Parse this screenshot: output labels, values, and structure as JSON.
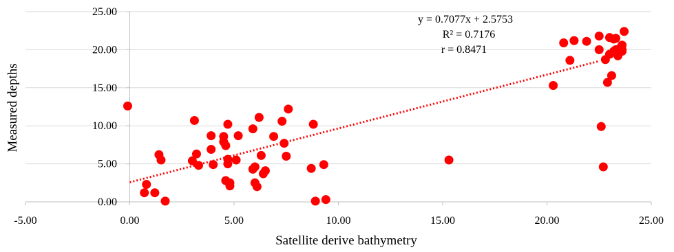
{
  "chart_data": {
    "type": "scatter",
    "title": "",
    "xlabel": "Satellite derive bathymetry",
    "ylabel": "Measured depths",
    "xlim": [
      -5,
      25
    ],
    "ylim": [
      0,
      25
    ],
    "x_ticks": [
      "-5.00",
      "0.00",
      "5.00",
      "10.00",
      "15.00",
      "20.00",
      "25.00"
    ],
    "y_ticks": [
      "0.00",
      "5.00",
      "10.00",
      "15.00",
      "20.00",
      "25.00"
    ],
    "grid": "horizontal",
    "legend": "none",
    "point_color": "#ff0000",
    "trendline": {
      "type": "linear",
      "slope": 0.7077,
      "intercept": 2.5753,
      "style": "dotted",
      "color": "#ff0000",
      "x_range": [
        0,
        22.5
      ]
    },
    "annotations": [
      "y = 0.7077x + 2.5753",
      "R² = 0.7176",
      "r = 0.8471"
    ],
    "series": [
      {
        "x": [
          -0.1,
          0.7,
          0.8,
          1.2,
          1.4,
          1.5,
          1.7,
          3.0,
          3.1,
          3.2,
          3.3,
          3.9,
          3.9,
          4.0,
          4.5,
          4.5,
          4.6,
          4.6,
          4.7,
          4.7,
          4.7,
          4.8,
          4.8,
          5.1,
          5.2,
          5.9,
          5.9,
          6.0,
          6.0,
          6.1,
          6.2,
          6.3,
          6.4,
          6.5,
          6.9,
          7.3,
          7.4,
          7.5,
          7.6,
          8.7,
          8.8,
          8.9,
          9.3,
          9.4,
          15.3,
          20.3,
          20.8,
          21.1,
          21.3,
          21.9,
          22.5,
          22.5,
          22.6,
          22.7,
          22.8,
          22.9,
          23.0,
          23.0,
          23.1,
          23.2,
          23.2,
          23.3,
          23.3,
          23.4,
          23.5,
          23.6,
          23.6,
          23.6,
          23.7
        ],
        "y": [
          12.6,
          1.2,
          2.3,
          1.2,
          6.2,
          5.5,
          0.1,
          5.4,
          10.7,
          6.3,
          4.8,
          8.7,
          6.9,
          4.9,
          8.6,
          7.9,
          7.4,
          2.8,
          5.0,
          5.6,
          10.2,
          2.5,
          2.1,
          5.5,
          8.7,
          9.6,
          4.3,
          4.6,
          2.5,
          2.0,
          11.1,
          6.1,
          3.7,
          4.1,
          8.6,
          10.6,
          7.7,
          6.0,
          12.2,
          4.4,
          10.2,
          0.1,
          4.9,
          0.3,
          5.5,
          15.3,
          20.9,
          18.6,
          21.2,
          21.1,
          20.0,
          21.8,
          9.9,
          4.6,
          18.7,
          15.7,
          19.4,
          21.6,
          16.6,
          21.4,
          19.8,
          20.0,
          21.5,
          19.2,
          20.2,
          20.0,
          20.6,
          19.8,
          22.4
        ]
      }
    ]
  }
}
